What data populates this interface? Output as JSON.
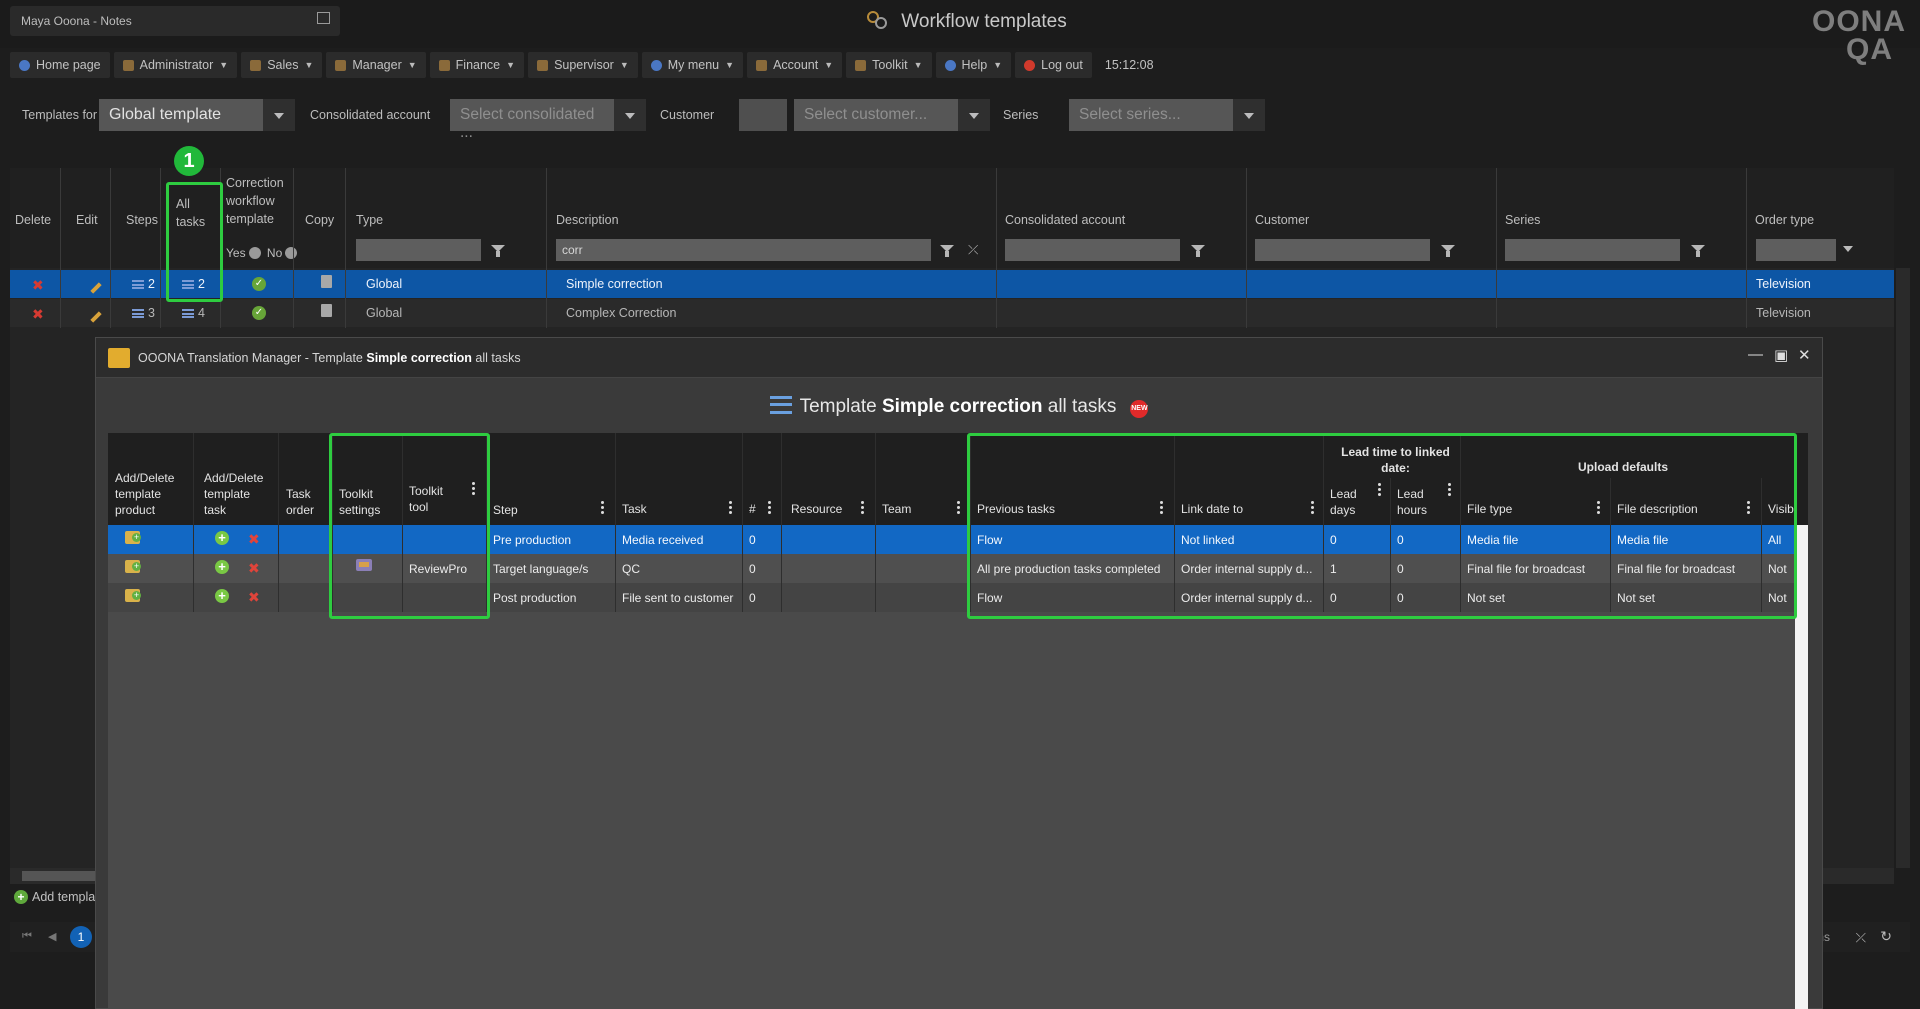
{
  "header": {
    "user_label": "Maya Ooona - Notes",
    "app_title": "Workflow templates",
    "logo_line1": "OONA",
    "logo_line2": "QA"
  },
  "menu": [
    {
      "label": "Home page",
      "dropdown": false,
      "icon": "home-icon"
    },
    {
      "label": "Administrator",
      "dropdown": true,
      "icon": "administrator-icon"
    },
    {
      "label": "Sales",
      "dropdown": true,
      "icon": "sales-icon"
    },
    {
      "label": "Manager",
      "dropdown": true,
      "icon": "manager-icon"
    },
    {
      "label": "Finance",
      "dropdown": true,
      "icon": "finance-icon"
    },
    {
      "label": "Supervisor",
      "dropdown": true,
      "icon": "supervisor-icon"
    },
    {
      "label": "My menu",
      "dropdown": true,
      "icon": "my-menu-icon"
    },
    {
      "label": "Account",
      "dropdown": true,
      "icon": "account-icon"
    },
    {
      "label": "Toolkit",
      "dropdown": true,
      "icon": "toolkit-icon"
    },
    {
      "label": "Help",
      "dropdown": true,
      "icon": "help-icon"
    },
    {
      "label": "Log out",
      "dropdown": false,
      "icon": "logout-icon"
    }
  ],
  "clock": "15:12:08",
  "filters": {
    "templates_for_label": "Templates for",
    "templates_for_value": "Global template",
    "consolidated_label": "Consolidated account",
    "consolidated_placeholder": "Select consolidated ...",
    "customer_label": "Customer",
    "customer_placeholder": "Select customer...",
    "series_label": "Series",
    "series_placeholder": "Select series..."
  },
  "grid": {
    "headers": {
      "delete": "Delete",
      "edit": "Edit",
      "steps": "Steps",
      "all_tasks_1": "All",
      "all_tasks_2": "tasks",
      "correction_1": "Correction",
      "correction_2": "workflow",
      "correction_3": "template",
      "copy": "Copy",
      "type": "Type",
      "description": "Description",
      "consolidated": "Consolidated account",
      "customer": "Customer",
      "series": "Series",
      "order_type": "Order type"
    },
    "radio_yes": "Yes",
    "radio_no": "No",
    "description_filter": "corr",
    "rows": [
      {
        "steps": "2",
        "all_tasks": "2",
        "type": "Global",
        "description": "Simple correction",
        "order_type": "Television"
      },
      {
        "steps": "3",
        "all_tasks": "4",
        "type": "Global",
        "description": "Complex Correction",
        "order_type": "Television"
      }
    ],
    "badge_number": "1",
    "add_template": "Add templa",
    "pager_page": "1",
    "pager_items": "ems"
  },
  "modal": {
    "title_prefix": "OOONA Translation Manager - Template ",
    "title_bold": "Simple correction",
    "title_suffix": " all tasks",
    "heading_prefix": "Template ",
    "heading_bold": "Simple correction",
    "heading_suffix": " all tasks",
    "new_badge": "NEW",
    "headers": {
      "add_delete_product_1": "Add/Delete",
      "add_delete_product_2": "template",
      "add_delete_product_3": "product",
      "add_delete_task_1": "Add/Delete",
      "add_delete_task_2": "template",
      "add_delete_task_3": "task",
      "task_order_1": "Task",
      "task_order_2": "order",
      "toolkit_settings_1": "Toolkit",
      "toolkit_settings_2": "settings",
      "toolkit_tool_1": "Toolkit",
      "toolkit_tool_2": "tool",
      "step": "Step",
      "task": "Task",
      "hash": "#",
      "resource": "Resource",
      "team": "Team",
      "previous_tasks": "Previous tasks",
      "link_date_to": "Link date to",
      "lead_group_1": "Lead time to linked",
      "lead_group_2": "date:",
      "lead_days_1": "Lead",
      "lead_days_2": "days",
      "lead_hours_1": "Lead",
      "lead_hours_2": "hours",
      "upload_defaults": "Upload defaults",
      "file_type": "File type",
      "file_description": "File description",
      "visib": "Visib"
    },
    "rows": [
      {
        "toolkit_tool": "",
        "step": "Pre production",
        "task": "Media received",
        "num": "0",
        "previous_tasks": "Flow",
        "link_date_to": "Not linked",
        "lead_days": "0",
        "lead_hours": "0",
        "file_type": "Media file",
        "file_description": "Media file",
        "visib": "All"
      },
      {
        "toolkit_tool": "ReviewPro",
        "step": "Target language/s",
        "task": "QC",
        "num": "0",
        "previous_tasks": "All pre production tasks completed",
        "link_date_to": "Order internal supply d...",
        "lead_days": "1",
        "lead_hours": "0",
        "file_type": "Final file for broadcast",
        "file_description": "Final file for broadcast",
        "visib": "Not"
      },
      {
        "toolkit_tool": "",
        "step": "Post production",
        "task": "File sent to customer",
        "num": "0",
        "previous_tasks": "Flow",
        "link_date_to": "Order internal supply d...",
        "lead_days": "0",
        "lead_hours": "0",
        "file_type": "Not set",
        "file_description": "Not set",
        "visib": "Not"
      }
    ]
  },
  "colors": {
    "highlight_green": "#2ecc40",
    "selection_blue": "#1268c4",
    "background": "#1d1d1d"
  }
}
